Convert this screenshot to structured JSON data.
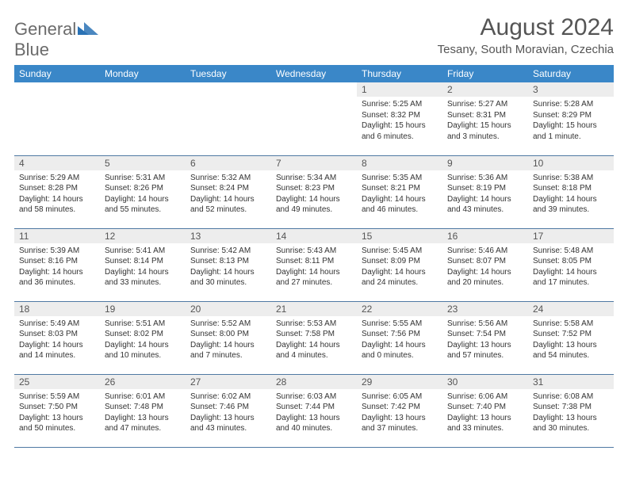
{
  "logo": {
    "word1": "General",
    "word2": "Blue"
  },
  "title": "August 2024",
  "location": "Tesany, South Moravian, Czechia",
  "colors": {
    "header_bg": "#3a87c8",
    "header_fg": "#ffffff",
    "daynum_bg": "#ededed",
    "row_border": "#4f79a3",
    "text": "#333333",
    "title_color": "#555555",
    "logo_gray": "#6b6b6b",
    "logo_blue": "#2a72b5",
    "page_bg": "#ffffff"
  },
  "weekdays": [
    "Sunday",
    "Monday",
    "Tuesday",
    "Wednesday",
    "Thursday",
    "Friday",
    "Saturday"
  ],
  "weeks": [
    [
      {
        "empty": true
      },
      {
        "empty": true
      },
      {
        "empty": true
      },
      {
        "empty": true
      },
      {
        "num": "1",
        "sunrise": "5:25 AM",
        "sunset": "8:32 PM",
        "daylight": "15 hours and 6 minutes."
      },
      {
        "num": "2",
        "sunrise": "5:27 AM",
        "sunset": "8:31 PM",
        "daylight": "15 hours and 3 minutes."
      },
      {
        "num": "3",
        "sunrise": "5:28 AM",
        "sunset": "8:29 PM",
        "daylight": "15 hours and 1 minute."
      }
    ],
    [
      {
        "num": "4",
        "sunrise": "5:29 AM",
        "sunset": "8:28 PM",
        "daylight": "14 hours and 58 minutes."
      },
      {
        "num": "5",
        "sunrise": "5:31 AM",
        "sunset": "8:26 PM",
        "daylight": "14 hours and 55 minutes."
      },
      {
        "num": "6",
        "sunrise": "5:32 AM",
        "sunset": "8:24 PM",
        "daylight": "14 hours and 52 minutes."
      },
      {
        "num": "7",
        "sunrise": "5:34 AM",
        "sunset": "8:23 PM",
        "daylight": "14 hours and 49 minutes."
      },
      {
        "num": "8",
        "sunrise": "5:35 AM",
        "sunset": "8:21 PM",
        "daylight": "14 hours and 46 minutes."
      },
      {
        "num": "9",
        "sunrise": "5:36 AM",
        "sunset": "8:19 PM",
        "daylight": "14 hours and 43 minutes."
      },
      {
        "num": "10",
        "sunrise": "5:38 AM",
        "sunset": "8:18 PM",
        "daylight": "14 hours and 39 minutes."
      }
    ],
    [
      {
        "num": "11",
        "sunrise": "5:39 AM",
        "sunset": "8:16 PM",
        "daylight": "14 hours and 36 minutes."
      },
      {
        "num": "12",
        "sunrise": "5:41 AM",
        "sunset": "8:14 PM",
        "daylight": "14 hours and 33 minutes."
      },
      {
        "num": "13",
        "sunrise": "5:42 AM",
        "sunset": "8:13 PM",
        "daylight": "14 hours and 30 minutes."
      },
      {
        "num": "14",
        "sunrise": "5:43 AM",
        "sunset": "8:11 PM",
        "daylight": "14 hours and 27 minutes."
      },
      {
        "num": "15",
        "sunrise": "5:45 AM",
        "sunset": "8:09 PM",
        "daylight": "14 hours and 24 minutes."
      },
      {
        "num": "16",
        "sunrise": "5:46 AM",
        "sunset": "8:07 PM",
        "daylight": "14 hours and 20 minutes."
      },
      {
        "num": "17",
        "sunrise": "5:48 AM",
        "sunset": "8:05 PM",
        "daylight": "14 hours and 17 minutes."
      }
    ],
    [
      {
        "num": "18",
        "sunrise": "5:49 AM",
        "sunset": "8:03 PM",
        "daylight": "14 hours and 14 minutes."
      },
      {
        "num": "19",
        "sunrise": "5:51 AM",
        "sunset": "8:02 PM",
        "daylight": "14 hours and 10 minutes."
      },
      {
        "num": "20",
        "sunrise": "5:52 AM",
        "sunset": "8:00 PM",
        "daylight": "14 hours and 7 minutes."
      },
      {
        "num": "21",
        "sunrise": "5:53 AM",
        "sunset": "7:58 PM",
        "daylight": "14 hours and 4 minutes."
      },
      {
        "num": "22",
        "sunrise": "5:55 AM",
        "sunset": "7:56 PM",
        "daylight": "14 hours and 0 minutes."
      },
      {
        "num": "23",
        "sunrise": "5:56 AM",
        "sunset": "7:54 PM",
        "daylight": "13 hours and 57 minutes."
      },
      {
        "num": "24",
        "sunrise": "5:58 AM",
        "sunset": "7:52 PM",
        "daylight": "13 hours and 54 minutes."
      }
    ],
    [
      {
        "num": "25",
        "sunrise": "5:59 AM",
        "sunset": "7:50 PM",
        "daylight": "13 hours and 50 minutes."
      },
      {
        "num": "26",
        "sunrise": "6:01 AM",
        "sunset": "7:48 PM",
        "daylight": "13 hours and 47 minutes."
      },
      {
        "num": "27",
        "sunrise": "6:02 AM",
        "sunset": "7:46 PM",
        "daylight": "13 hours and 43 minutes."
      },
      {
        "num": "28",
        "sunrise": "6:03 AM",
        "sunset": "7:44 PM",
        "daylight": "13 hours and 40 minutes."
      },
      {
        "num": "29",
        "sunrise": "6:05 AM",
        "sunset": "7:42 PM",
        "daylight": "13 hours and 37 minutes."
      },
      {
        "num": "30",
        "sunrise": "6:06 AM",
        "sunset": "7:40 PM",
        "daylight": "13 hours and 33 minutes."
      },
      {
        "num": "31",
        "sunrise": "6:08 AM",
        "sunset": "7:38 PM",
        "daylight": "13 hours and 30 minutes."
      }
    ]
  ],
  "labels": {
    "sunrise": "Sunrise:",
    "sunset": "Sunset:",
    "daylight": "Daylight:"
  }
}
